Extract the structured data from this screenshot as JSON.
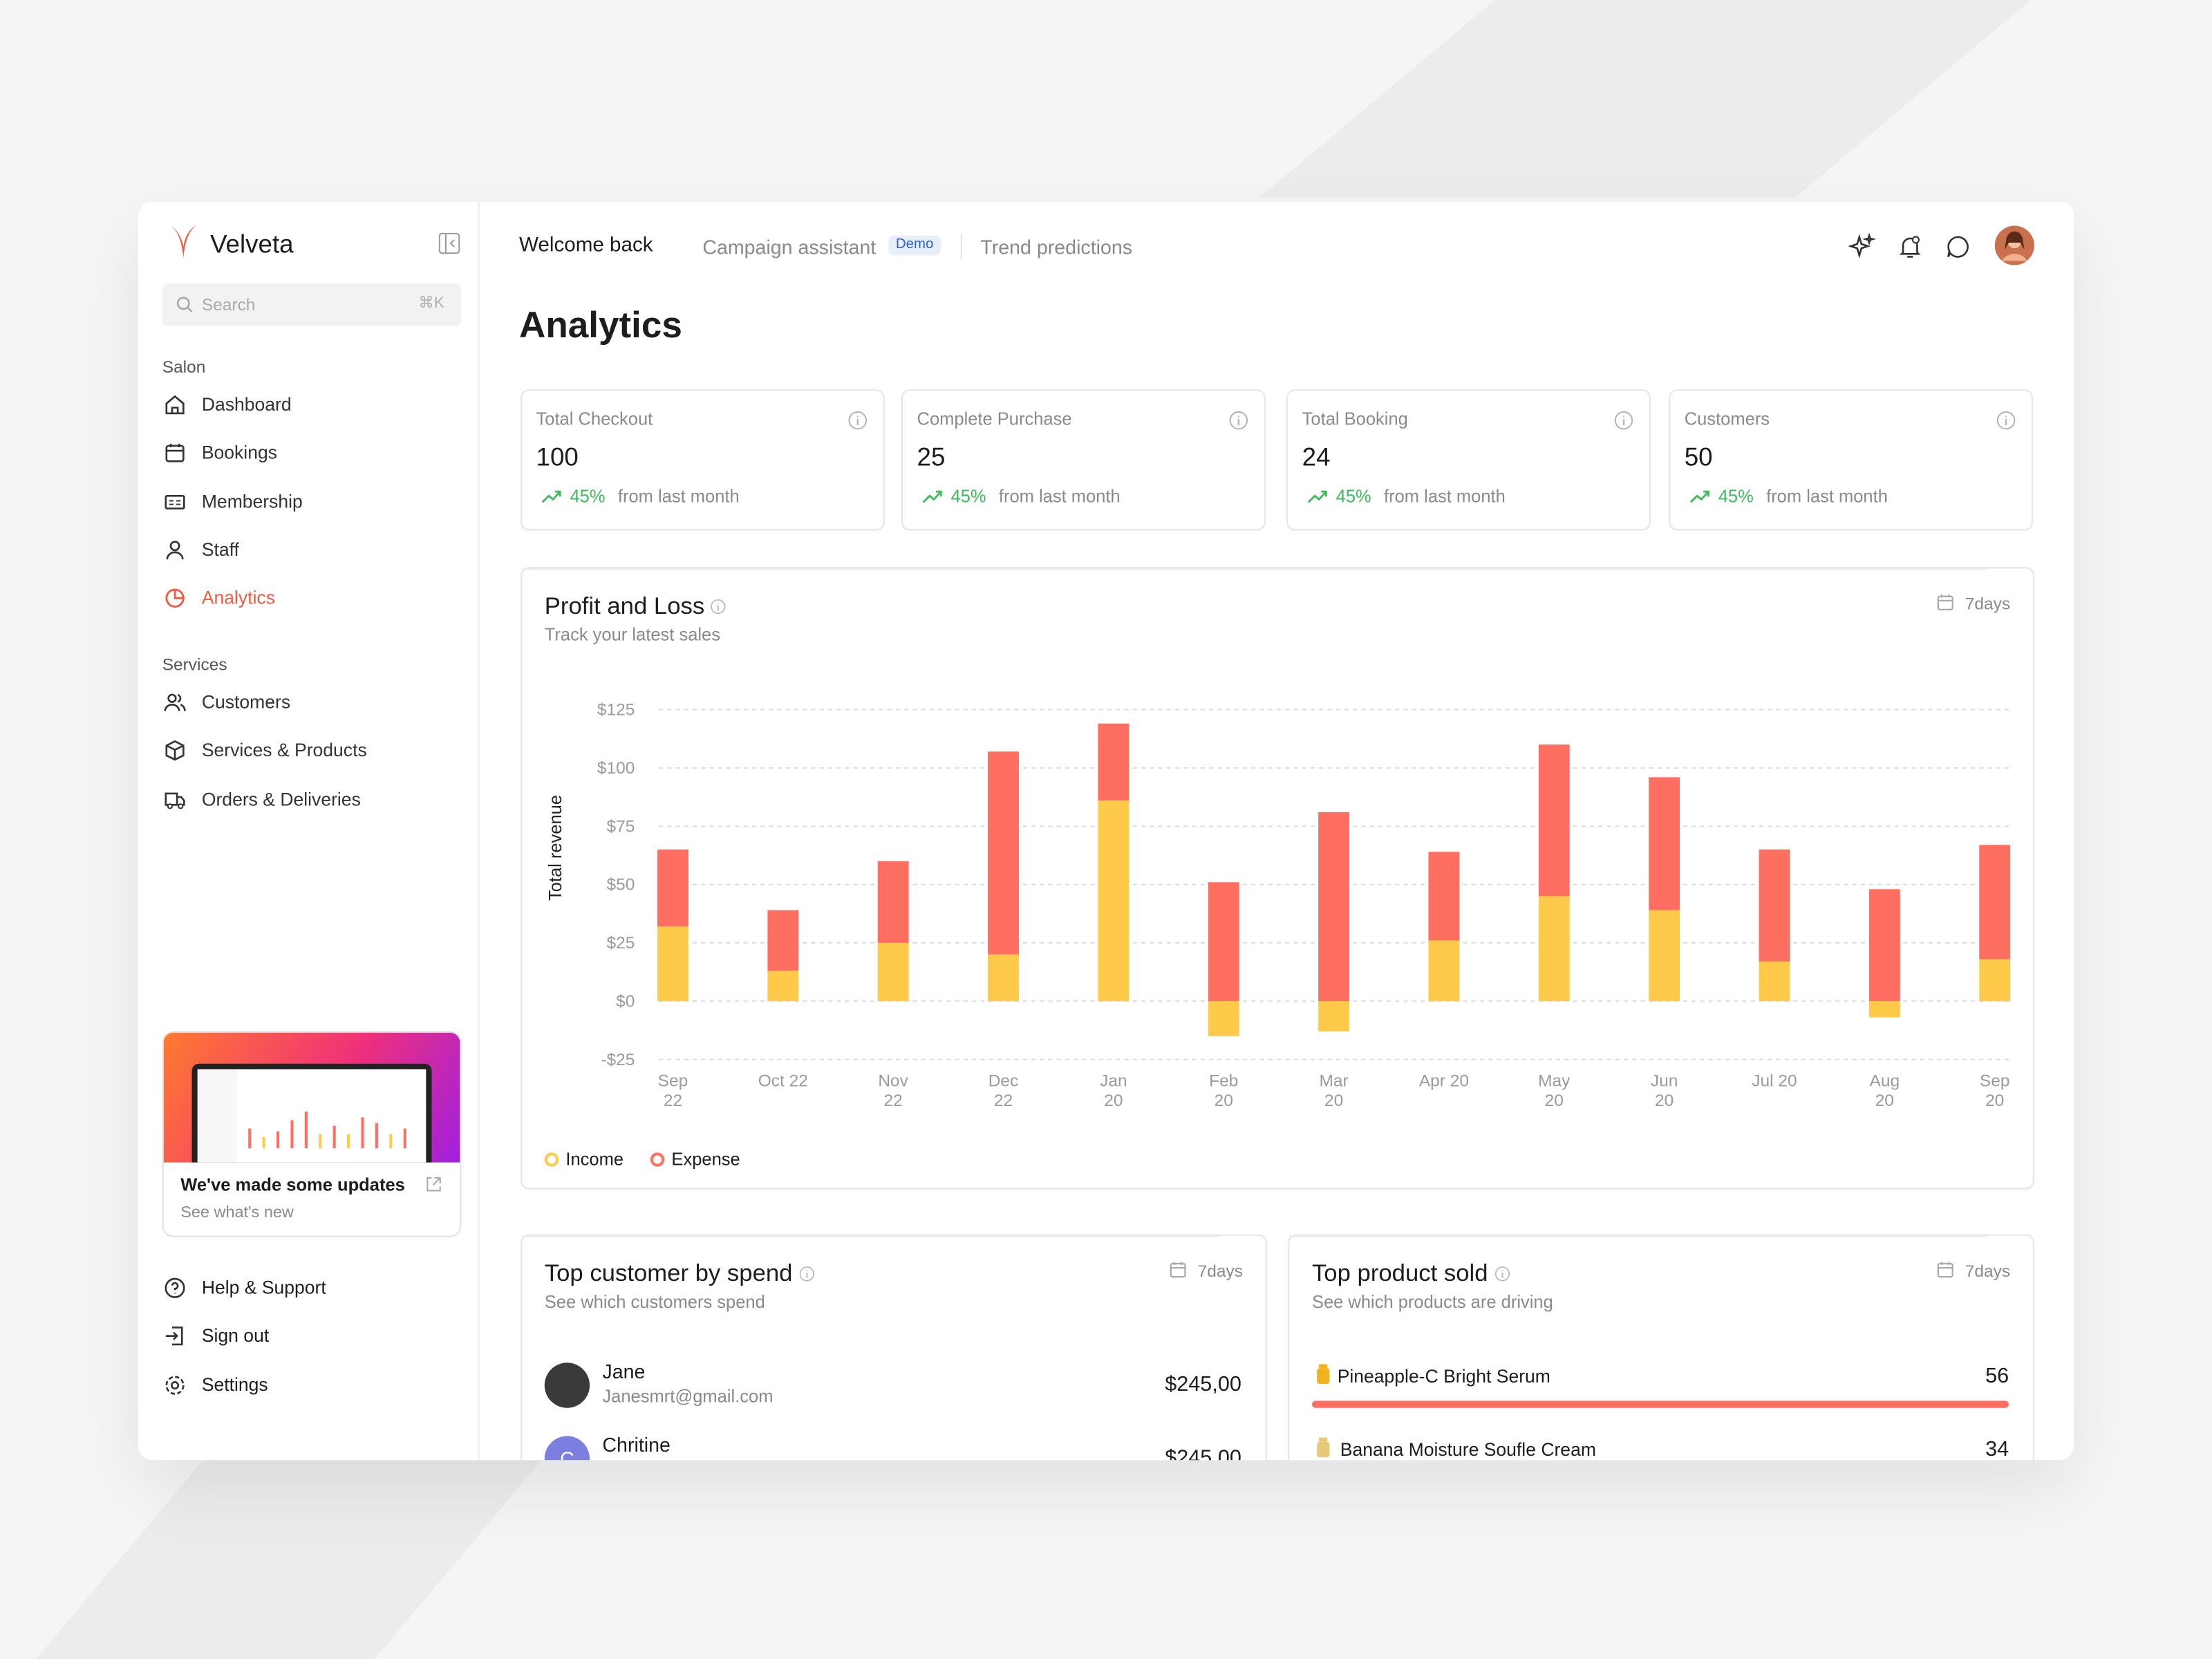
{
  "brand": "Velveta",
  "search": {
    "placeholder": "Search",
    "shortcut": "⌘K"
  },
  "sidebar": {
    "sections": [
      {
        "title": "Salon",
        "items": [
          "Dashboard",
          "Bookings",
          "Membership",
          "Staff",
          "Analytics"
        ]
      },
      {
        "title": "Services",
        "items": [
          "Customers",
          "Services & Products",
          "Orders & Deliveries"
        ]
      }
    ],
    "update_card": {
      "title": "We've made some updates",
      "subtitle": "See what's new"
    },
    "footer_links": [
      "Help & Support",
      "Sign out",
      "Settings"
    ]
  },
  "header": {
    "tabs": [
      "Welcome back",
      "Campaign assistant",
      "Trend predictions"
    ],
    "badge": "Demo"
  },
  "page_title": "Analytics",
  "stats": [
    {
      "title": "Total Checkout",
      "value": 100,
      "change": "45%",
      "note": "from last month"
    },
    {
      "title": "Complete Purchase",
      "value": 25,
      "change": "45%",
      "note": "from last month"
    },
    {
      "title": "Total Booking",
      "value": 24,
      "change": "45%",
      "note": "from last month"
    },
    {
      "title": "Customers",
      "value": 50,
      "change": "45%",
      "note": "from last month"
    }
  ],
  "chart_data": {
    "type": "bar",
    "stacked": true,
    "title": "Profit and Loss",
    "subtitle": "Track your latest sales",
    "period": "7days",
    "y_label": "Total revenue",
    "categories": [
      "Sep 22",
      "Oct 22",
      "Nov 22",
      "Dec 22",
      "Jan 20",
      "Feb 20",
      "Mar 20",
      "Apr 20",
      "May 20",
      "Jun 20",
      "Jul 20",
      "Aug 20",
      "Sep 20"
    ],
    "series": [
      {
        "name": "Income",
        "color": "#ffc94a",
        "values": [
          32,
          13,
          25,
          20,
          86,
          -15,
          -13,
          26,
          45,
          39,
          17,
          -7,
          18
        ]
      },
      {
        "name": "Expense",
        "color": "#ff6f61",
        "values": [
          33,
          26,
          35,
          87,
          33,
          51,
          81,
          38,
          65,
          57,
          48,
          48,
          49
        ]
      }
    ],
    "ylim": [
      -25,
      125
    ],
    "yticks": [
      {
        "value": -25,
        "label": "-$25"
      },
      {
        "value": 0,
        "label": "$0"
      },
      {
        "value": 25,
        "label": "$25"
      },
      {
        "value": 50,
        "label": "$50"
      },
      {
        "value": 75,
        "label": "$75"
      },
      {
        "value": 100,
        "label": "$100"
      },
      {
        "value": 125,
        "label": "$125"
      }
    ],
    "grid": true,
    "legend": "bottom-left"
  },
  "top_customers": {
    "title": "Top customer by spend",
    "subtitle": "See which customers spend",
    "period": "7days",
    "rows": [
      {
        "name": "Jane",
        "email": "Janesmrt@gmail.com",
        "amount": "$245,00"
      },
      {
        "name": "Chritine",
        "initial": "C",
        "amount": "$245,00"
      }
    ]
  },
  "top_products": {
    "title": "Top product sold",
    "subtitle": "See which products are driving",
    "period": "7days",
    "rows": [
      {
        "name": "Pineapple-C Bright Serum",
        "sold": 56
      },
      {
        "name": "Banana Moisture Soufle Cream",
        "sold": 34
      }
    ]
  }
}
